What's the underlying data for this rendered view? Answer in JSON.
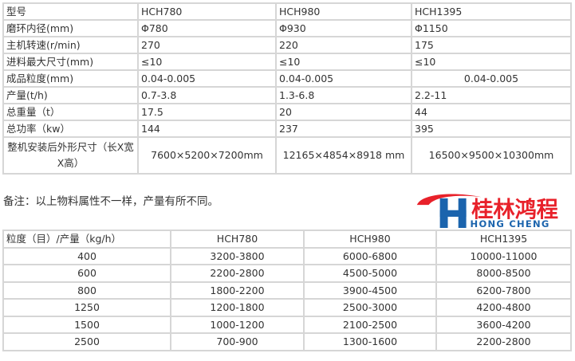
{
  "spec_table": {
    "headers": [
      "型号",
      "HCH780",
      "HCH980",
      "HCH1395"
    ],
    "rows": [
      [
        "磨环内径(mm)",
        "Φ780",
        "Φ930",
        "Φ1150"
      ],
      [
        "主机转速(r/min)",
        "270",
        "220",
        "175"
      ],
      [
        "进料最大尺寸(mm)",
        "≤10",
        "≤10",
        "≤10"
      ],
      [
        "成品粒度(mm)",
        "0.04-0.005",
        "0.04-0.005",
        "0.04-0.005"
      ],
      [
        "产量(t/h)",
        "0.7-3.8",
        "1.3-6.8",
        "2.2-11"
      ],
      [
        "总重量（t）",
        "17.5",
        "20",
        "44"
      ],
      [
        "总功率（kw）",
        "144",
        "237",
        "395"
      ],
      [
        "整机安装后外形尺寸（长X宽X高）",
        "7600×5200×7200mm",
        "12165×4854×8918 mm",
        "16500×9500×10300mm"
      ]
    ]
  },
  "remark": "备注：以上物料属性不一样，产量有所不同。",
  "output_table": {
    "headers": [
      "粒度（目）/产量（kg/h）",
      "HCH780",
      "HCH980",
      "HCH1395"
    ],
    "rows": [
      [
        "400",
        "3200-3800",
        "6000-6800",
        "10000-11000"
      ],
      [
        "600",
        "2200-2800",
        "4500-5000",
        "8000-8500"
      ],
      [
        "800",
        "1800-2200",
        "3900-4500",
        "6200-7800"
      ],
      [
        "1250",
        "1200-1800",
        "2500-3000",
        "4200-4800"
      ],
      [
        "1500",
        "1000-1200",
        "2100-2500",
        "3600-4200"
      ],
      [
        "2500",
        "700-900",
        "1300-1600",
        "2200-2800"
      ]
    ]
  },
  "logo": {
    "chinese": "桂林鸿程",
    "english": "HONG CHENG",
    "letter": "H",
    "red": "#e8212a",
    "blue": "#1b64ad"
  }
}
